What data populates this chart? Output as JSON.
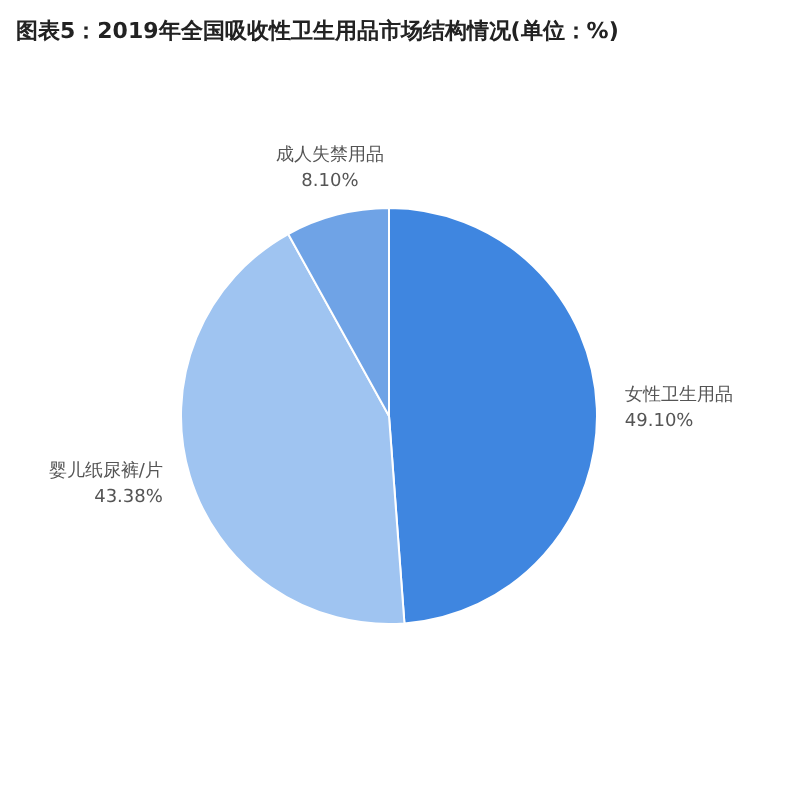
{
  "chart_data": {
    "type": "pie",
    "title": "图表5：2019年全国吸收性卫生用品市场结构情况(单位：%)",
    "categories": [
      "女性卫生用品",
      "婴儿纸尿裤/片",
      "成人失禁用品"
    ],
    "values": [
      49.1,
      43.38,
      8.1
    ],
    "value_labels": [
      "49.10%",
      "43.38%",
      "8.10%"
    ],
    "colors": [
      "#3f86e0",
      "#9fc4f1",
      "#6fa3e6"
    ],
    "legend": false
  }
}
